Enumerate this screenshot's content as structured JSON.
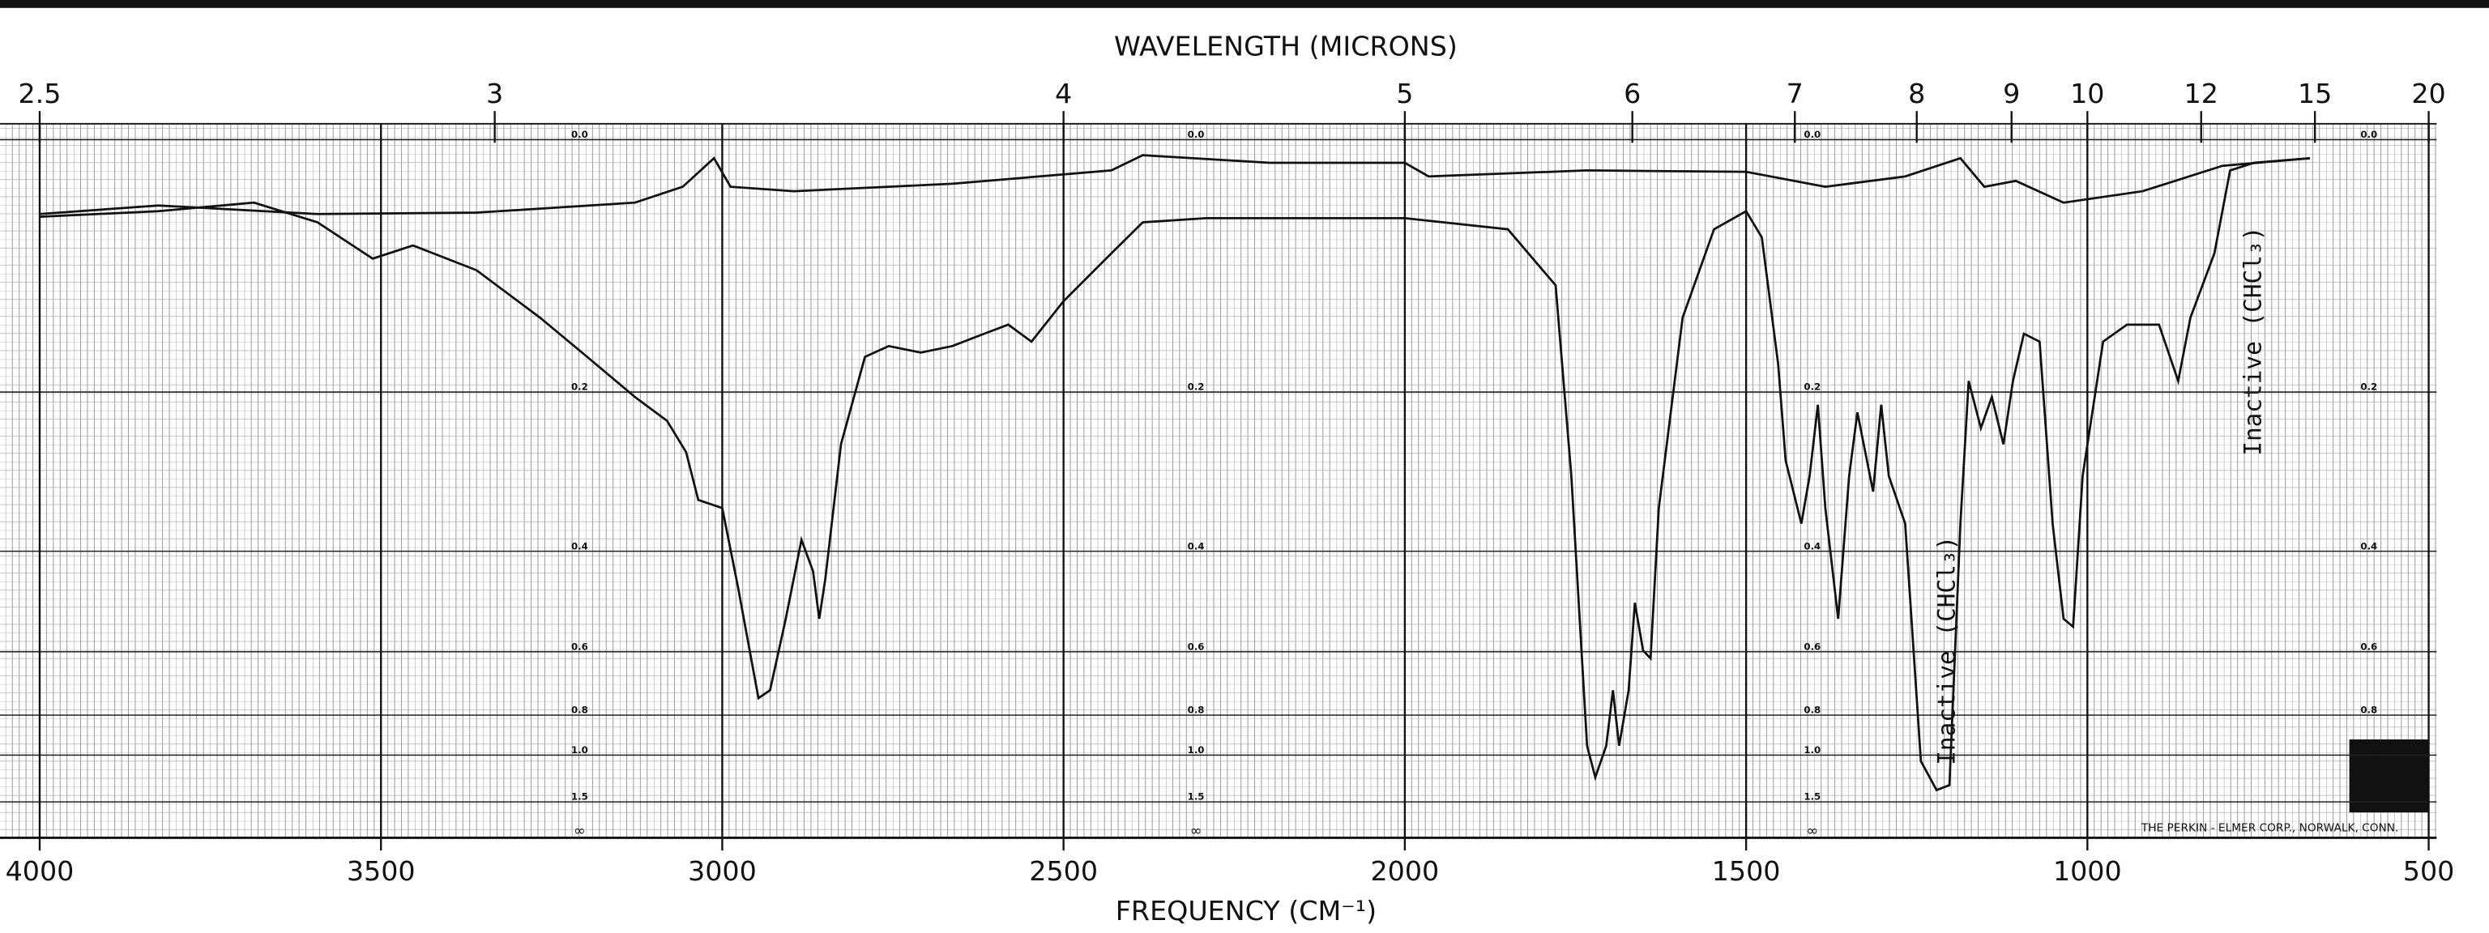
{
  "chart_data": {
    "type": "line",
    "title": "WAVELENGTH (MICRONS)",
    "xlabel": "FREQUENCY (CM⁻¹)",
    "xlim": [
      4000,
      500
    ],
    "xticks": [
      4000,
      3500,
      3000,
      2500,
      2000,
      1500,
      1000,
      500
    ],
    "x2scale": "reciprocal",
    "x2lim": [
      2.5,
      20
    ],
    "x2ticks": [
      2.5,
      3,
      4,
      5,
      6,
      7,
      8,
      9,
      10,
      12,
      15,
      20
    ],
    "yscale": "absorbance",
    "yticks": [
      {
        "value": 0,
        "label": "0.0"
      },
      0.2,
      0.4,
      0.6,
      0.8,
      {
        "value": 1,
        "label": "1.0"
      },
      1.5
    ],
    "ybottom_label": "∞",
    "grid": true,
    "series": [
      {
        "color": "#111111",
        "x": [
          4000,
          3826,
          3686,
          3593,
          3512,
          3453,
          3360,
          3267,
          3198,
          3128,
          3081,
          3053,
          3035,
          3000,
          2977,
          2947,
          2930,
          2907,
          2884,
          2867,
          2858,
          2849,
          2826,
          2791,
          2756,
          2709,
          2663,
          2616,
          2581,
          2547,
          2500,
          2430,
          2384,
          2291,
          2000,
          1849,
          1779,
          1756,
          1733,
          1721,
          1705,
          1695,
          1686,
          1672,
          1663,
          1651,
          1640,
          1628,
          1593,
          1547,
          1500,
          1477,
          1453,
          1442,
          1419,
          1407,
          1395,
          1384,
          1365,
          1349,
          1337,
          1314,
          1302,
          1291,
          1267,
          1244,
          1221,
          1202,
          1186,
          1174,
          1156,
          1140,
          1123,
          1109,
          1093,
          1070,
          1051,
          1035,
          1021,
          1007,
          977,
          942,
          895,
          867,
          849,
          814,
          791,
          756,
          674
        ],
        "values": [
          0.052,
          0.048,
          0.042,
          0.056,
          0.083,
          0.073,
          0.092,
          0.131,
          0.166,
          0.205,
          0.23,
          0.265,
          0.325,
          0.336,
          0.461,
          0.737,
          0.71,
          0.524,
          0.382,
          0.433,
          0.524,
          0.447,
          0.256,
          0.166,
          0.156,
          0.162,
          0.156,
          0.145,
          0.137,
          0.152,
          0.117,
          0.079,
          0.056,
          0.053,
          0.053,
          0.061,
          0.104,
          0.294,
          0.944,
          1.17,
          0.944,
          0.71,
          0.944,
          0.71,
          0.491,
          0.597,
          0.617,
          0.336,
          0.131,
          0.061,
          0.048,
          0.067,
          0.173,
          0.275,
          0.358,
          0.294,
          0.213,
          0.336,
          0.524,
          0.294,
          0.221,
          0.314,
          0.213,
          0.294,
          0.358,
          1.04,
          1.31,
          1.25,
          0.358,
          0.189,
          0.238,
          0.205,
          0.256,
          0.189,
          0.145,
          0.152,
          0.358,
          0.524,
          0.541,
          0.294,
          0.152,
          0.137,
          0.137,
          0.189,
          0.131,
          0.079,
          0.02,
          0.015,
          0.012
        ]
      },
      {
        "color": "#111111",
        "x": [
          4000,
          3826,
          3593,
          3360,
          3128,
          3058,
          3012,
          2988,
          2895,
          2663,
          2430,
          2384,
          2198,
          2000,
          1965,
          1733,
          1500,
          1384,
          1267,
          1186,
          1151,
          1105,
          1035,
          919,
          802,
          674
        ],
        "values": [
          0.05,
          0.044,
          0.05,
          0.049,
          0.042,
          0.031,
          0.012,
          0.031,
          0.034,
          0.029,
          0.02,
          0.01,
          0.015,
          0.015,
          0.024,
          0.02,
          0.021,
          0.031,
          0.024,
          0.012,
          0.031,
          0.027,
          0.042,
          0.034,
          0.017,
          0.012
        ]
      }
    ],
    "annotations": [
      "Inactive (CHCl₃)",
      "Inactive (CHCl₃)",
      "THE PERKIN - ELMER CORP., NORWALK, CONN."
    ]
  }
}
